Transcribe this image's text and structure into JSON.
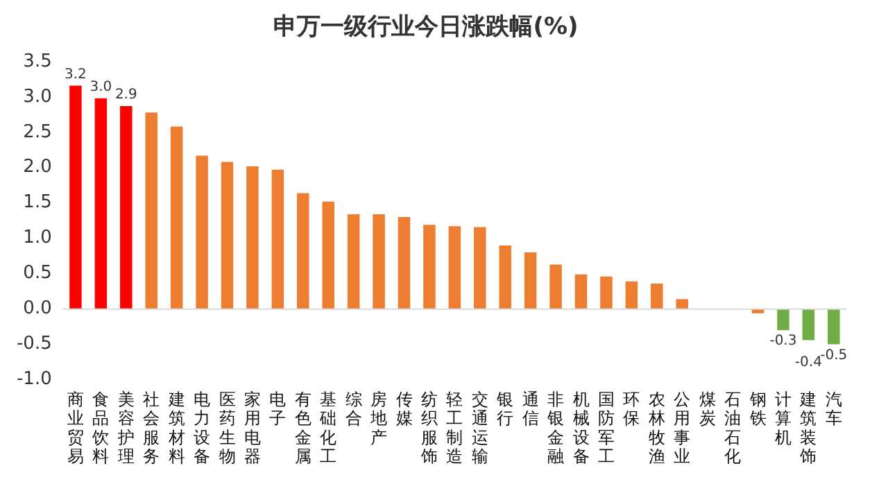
{
  "chart_data": {
    "type": "bar",
    "title": "申万一级行业今日涨跌幅(%)",
    "categories": [
      "商业贸易",
      "食品饮料",
      "美容护理",
      "社会服务",
      "建筑材料",
      "电力设备",
      "医药生物",
      "家用电器",
      "电子",
      "有色金属",
      "基础化工",
      "综合",
      "房地产",
      "传媒",
      "纺织服饰",
      "轻工制造",
      "交通运输",
      "银行",
      "通信",
      "非银金融",
      "机械设备",
      "国防军工",
      "环保",
      "农林牧渔",
      "公用事业",
      "煤炭",
      "石油石化",
      "钢铁",
      "计算机",
      "建筑装饰",
      "汽车"
    ],
    "values": [
      3.16,
      2.98,
      2.87,
      2.78,
      2.58,
      2.17,
      2.08,
      2.02,
      1.97,
      1.64,
      1.52,
      1.34,
      1.34,
      1.3,
      1.19,
      1.17,
      1.16,
      0.9,
      0.8,
      0.63,
      0.49,
      0.46,
      0.39,
      0.36,
      0.14,
      0,
      0,
      -0.06,
      -0.3,
      -0.44,
      -0.5
    ],
    "colors": [
      "#ff0000",
      "#ff0000",
      "#ff0000",
      "#ed7d31",
      "#ed7d31",
      "#ed7d31",
      "#ed7d31",
      "#ed7d31",
      "#ed7d31",
      "#ed7d31",
      "#ed7d31",
      "#ed7d31",
      "#ed7d31",
      "#ed7d31",
      "#ed7d31",
      "#ed7d31",
      "#ed7d31",
      "#ed7d31",
      "#ed7d31",
      "#ed7d31",
      "#ed7d31",
      "#ed7d31",
      "#ed7d31",
      "#ed7d31",
      "#ed7d31",
      "#ed7d31",
      "#ed7d31",
      "#ed7d31",
      "#70ad47",
      "#70ad47",
      "#70ad47"
    ],
    "value_labels": [
      "3.2",
      "3.0",
      "2.9",
      null,
      null,
      null,
      null,
      null,
      null,
      null,
      null,
      null,
      null,
      null,
      null,
      null,
      null,
      null,
      null,
      null,
      null,
      null,
      null,
      null,
      null,
      null,
      null,
      null,
      "-0.3",
      "-0.4",
      "-0.5"
    ],
    "ylim": [
      -1,
      3.5
    ],
    "yticks": [
      {
        "value": -1,
        "label": "-1.0"
      },
      {
        "value": -0.5,
        "label": "-0.5"
      },
      {
        "value": 0,
        "label": "0.0"
      },
      {
        "value": 0.5,
        "label": "0.5"
      },
      {
        "value": 1,
        "label": "1.0"
      },
      {
        "value": 1.5,
        "label": "1.5"
      },
      {
        "value": 2,
        "label": "2.0"
      },
      {
        "value": 2.5,
        "label": "2.5"
      },
      {
        "value": 3,
        "label": "3.0"
      },
      {
        "value": 3.5,
        "label": "3.5"
      }
    ],
    "ref_lines": [
      {
        "axis": "y",
        "value": 0,
        "color": "#d9d9d9"
      }
    ],
    "grid": false,
    "legend": false
  }
}
